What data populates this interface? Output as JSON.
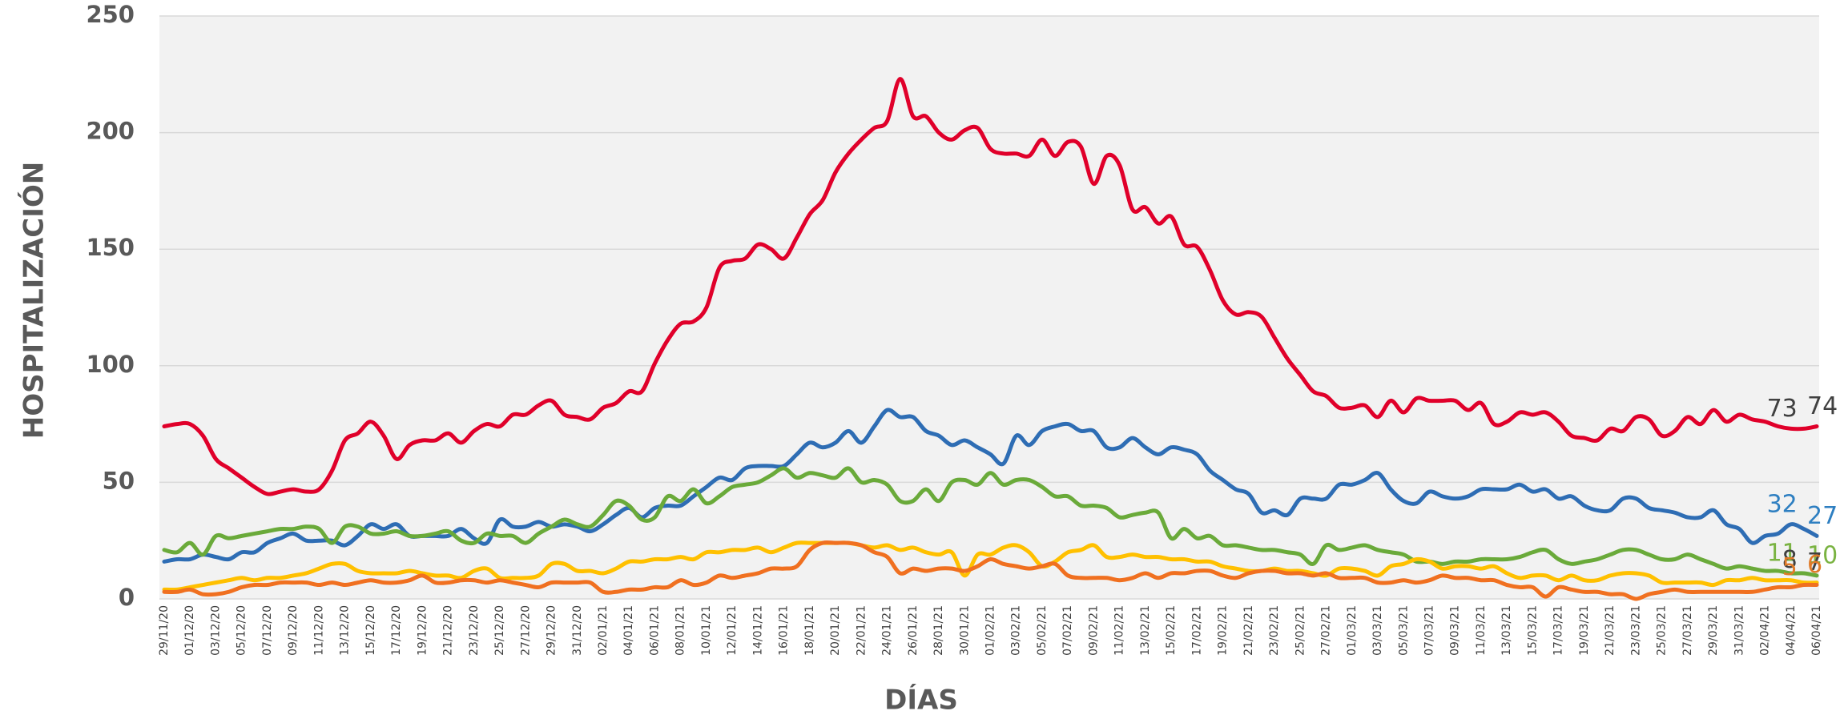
{
  "chart_data": {
    "type": "line",
    "y_label": "HOSPITALIZACIÓN",
    "x_label": "DÍAS",
    "categories": [
      "29/11/20",
      null,
      "01/12/20",
      null,
      "03/12/20",
      null,
      "05/12/20",
      null,
      "07/12/20",
      null,
      "09/12/20",
      null,
      "11/12/20",
      null,
      "13/12/20",
      null,
      "15/12/20",
      null,
      "17/12/20",
      null,
      "19/12/20",
      null,
      "21/12/20",
      null,
      "23/12/20",
      null,
      "25/12/20",
      null,
      "27/12/20",
      null,
      "29/12/20",
      null,
      "31/12/20",
      null,
      "02/01/21",
      null,
      "04/01/21",
      null,
      "06/01/21",
      null,
      "08/01/21",
      null,
      "10/01/21",
      null,
      "12/01/21",
      null,
      "14/01/21",
      null,
      "16/01/21",
      null,
      "18/01/21",
      null,
      "20/01/21",
      null,
      "22/01/21",
      null,
      "24/01/21",
      null,
      "26/01/21",
      null,
      "28/01/21",
      null,
      "30/01/21",
      null,
      "01/02/21",
      null,
      "03/02/21",
      null,
      "05/02/21",
      null,
      "07/02/21",
      null,
      "09/02/21",
      null,
      "11/02/21",
      null,
      "13/02/21",
      null,
      "15/02/21",
      null,
      "17/02/21",
      null,
      "19/02/21",
      null,
      "21/02/21",
      null,
      "23/02/21",
      null,
      "25/02/21",
      null,
      "27/02/21",
      null,
      "01/03/21",
      null,
      "03/03/21",
      null,
      "05/03/21",
      null,
      "07/03/21",
      null,
      "09/03/21",
      null,
      "11/03/21",
      null,
      "13/03/21",
      null,
      "15/03/21",
      null,
      "17/03/21",
      null,
      "19/03/21",
      null,
      "21/03/21",
      null,
      "23/03/21",
      null,
      "25/03/21",
      null,
      "27/03/21",
      null,
      "29/03/21",
      null,
      "31/03/21",
      null,
      "02/04/21",
      null,
      "04/04/21",
      null,
      "06/04/21"
    ],
    "series": [
      {
        "color": "#e0002a",
        "label_color": "#404040",
        "values": [
          74,
          75,
          75,
          70,
          60,
          56,
          52,
          48,
          45,
          46,
          47,
          46,
          47,
          55,
          68,
          71,
          76,
          70,
          60,
          66,
          68,
          68,
          71,
          67,
          72,
          75,
          74,
          79,
          79,
          83,
          85,
          79,
          78,
          77,
          82,
          84,
          89,
          89,
          101,
          111,
          118,
          119,
          125,
          142,
          145,
          146,
          152,
          150,
          146,
          155,
          165,
          171,
          183,
          191,
          197,
          202,
          205,
          223,
          207,
          207,
          200,
          197,
          201,
          202,
          193,
          191,
          191,
          190,
          197,
          190,
          196,
          194,
          178,
          190,
          186,
          167,
          168,
          161,
          164,
          152,
          151,
          141,
          128,
          122,
          123,
          121,
          112,
          103,
          96,
          89,
          87,
          82,
          82,
          83,
          78,
          85,
          80,
          86,
          85,
          85,
          85,
          81,
          84,
          75,
          76,
          80,
          79,
          80,
          76,
          70,
          69,
          68,
          73,
          72,
          78,
          77,
          70,
          72,
          78,
          75,
          81,
          76,
          79,
          77,
          76,
          74,
          73,
          73,
          74
        ]
      },
      {
        "color": "#2e6db4",
        "label_color": "#2e7fc1",
        "values": [
          16,
          17,
          17,
          19,
          18,
          17,
          20,
          20,
          24,
          26,
          28,
          25,
          25,
          25,
          23,
          27,
          32,
          30,
          32,
          27,
          27,
          27,
          27,
          30,
          26,
          24,
          34,
          31,
          31,
          33,
          31,
          32,
          31,
          29,
          32,
          36,
          39,
          35,
          39,
          40,
          40,
          44,
          48,
          52,
          51,
          56,
          57,
          57,
          57,
          62,
          67,
          65,
          67,
          72,
          67,
          74,
          81,
          78,
          78,
          72,
          70,
          66,
          68,
          65,
          62,
          58,
          70,
          66,
          72,
          74,
          75,
          72,
          72,
          65,
          65,
          69,
          65,
          62,
          65,
          64,
          62,
          55,
          51,
          47,
          45,
          37,
          38,
          36,
          43,
          43,
          43,
          49,
          49,
          51,
          54,
          47,
          42,
          41,
          46,
          44,
          43,
          44,
          47,
          47,
          47,
          49,
          46,
          47,
          43,
          44,
          40,
          38,
          38,
          43,
          43,
          39,
          38,
          37,
          35,
          35,
          38,
          32,
          30,
          24,
          27,
          28,
          32,
          30,
          27
        ]
      },
      {
        "color": "#6aaa3a",
        "label_color": "#7ab342",
        "values": [
          21,
          20,
          24,
          19,
          27,
          26,
          27,
          28,
          29,
          30,
          30,
          31,
          30,
          24,
          31,
          31,
          28,
          28,
          29,
          27,
          27,
          28,
          29,
          25,
          24,
          28,
          27,
          27,
          24,
          28,
          31,
          34,
          32,
          31,
          36,
          42,
          40,
          34,
          35,
          44,
          42,
          47,
          41,
          44,
          48,
          49,
          50,
          53,
          56,
          52,
          54,
          53,
          52,
          56,
          50,
          51,
          49,
          42,
          42,
          47,
          42,
          50,
          51,
          49,
          54,
          49,
          51,
          51,
          48,
          44,
          44,
          40,
          40,
          39,
          35,
          36,
          37,
          37,
          26,
          30,
          26,
          27,
          23,
          23,
          22,
          21,
          21,
          20,
          19,
          15,
          23,
          21,
          22,
          23,
          21,
          20,
          19,
          16,
          16,
          15,
          16,
          16,
          17,
          17,
          17,
          18,
          20,
          21,
          17,
          15,
          16,
          17,
          19,
          21,
          21,
          19,
          17,
          17,
          19,
          17,
          15,
          13,
          14,
          13,
          12,
          12,
          11,
          11,
          10
        ]
      },
      {
        "color": "#ffc000",
        "label_color": "#404040",
        "values": [
          4,
          4,
          5,
          6,
          7,
          8,
          9,
          8,
          9,
          9,
          10,
          11,
          13,
          15,
          15,
          12,
          11,
          11,
          11,
          12,
          11,
          10,
          10,
          9,
          12,
          13,
          9,
          9,
          9,
          10,
          15,
          15,
          12,
          12,
          11,
          13,
          16,
          16,
          17,
          17,
          18,
          17,
          20,
          20,
          21,
          21,
          22,
          20,
          22,
          24,
          24,
          24,
          24,
          24,
          23,
          22,
          23,
          21,
          22,
          20,
          19,
          20,
          10,
          19,
          19,
          22,
          23,
          20,
          14,
          16,
          20,
          21,
          23,
          18,
          18,
          19,
          18,
          18,
          17,
          17,
          16,
          16,
          14,
          13,
          12,
          12,
          13,
          12,
          12,
          11,
          10,
          13,
          13,
          12,
          10,
          14,
          15,
          17,
          16,
          13,
          14,
          14,
          13,
          14,
          11,
          9,
          10,
          10,
          8,
          10,
          8,
          8,
          10,
          11,
          11,
          10,
          7,
          7,
          7,
          7,
          6,
          8,
          8,
          9,
          8,
          8,
          8,
          7,
          7
        ]
      },
      {
        "color": "#f07020",
        "label_color": "#e07a28",
        "values": [
          3,
          3,
          4,
          2,
          2,
          3,
          5,
          6,
          6,
          7,
          7,
          7,
          6,
          7,
          6,
          7,
          8,
          7,
          7,
          8,
          10,
          7,
          7,
          8,
          8,
          7,
          8,
          7,
          6,
          5,
          7,
          7,
          7,
          7,
          3,
          3,
          4,
          4,
          5,
          5,
          8,
          6,
          7,
          10,
          9,
          10,
          11,
          13,
          13,
          14,
          21,
          24,
          24,
          24,
          23,
          20,
          18,
          11,
          13,
          12,
          13,
          13,
          12,
          14,
          17,
          15,
          14,
          13,
          14,
          15,
          10,
          9,
          9,
          9,
          8,
          9,
          11,
          9,
          11,
          11,
          12,
          12,
          10,
          9,
          11,
          12,
          12,
          11,
          11,
          10,
          11,
          9,
          9,
          9,
          7,
          7,
          8,
          7,
          8,
          10,
          9,
          9,
          8,
          8,
          6,
          5,
          5,
          1,
          5,
          4,
          3,
          3,
          2,
          2,
          0,
          2,
          3,
          4,
          3,
          3,
          3,
          3,
          3,
          3,
          4,
          5,
          5,
          6,
          6
        ]
      }
    ],
    "labeled_points": [
      126,
      128
    ],
    "ylim": [
      0,
      250
    ],
    "yticks": [
      0,
      50,
      100,
      150,
      200,
      250
    ],
    "grid": true
  }
}
